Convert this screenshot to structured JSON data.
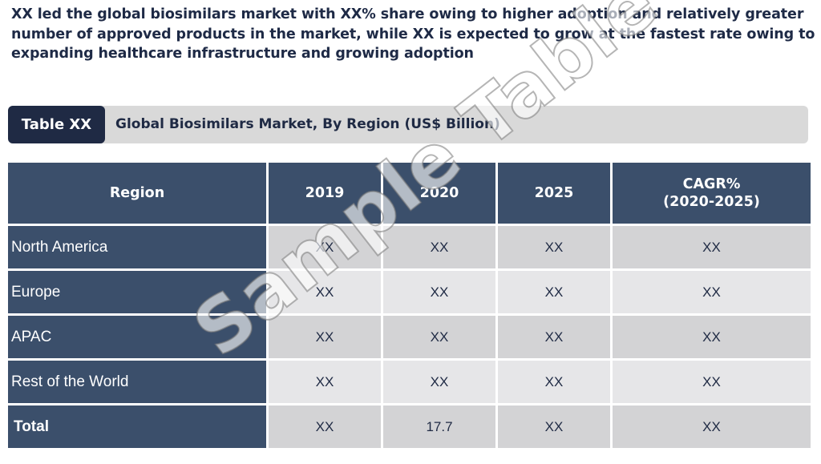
{
  "headline": "XX led the global biosimilars market with XX% share owing to higher adoption and relatively greater number of approved products in the market, while XX is expected to grow at the fastest rate owing to expanding healthcare infrastructure and growing adoption",
  "caption": {
    "tag": "Table XX",
    "title": "Global Biosimilars Market, By Region (US$ Billion)"
  },
  "table": {
    "headers": [
      "Region",
      "2019",
      "2020",
      "2025",
      "CAGR%\n(2020-2025)"
    ],
    "header_cagr_line1": "CAGR%",
    "header_cagr_line2": "(2020-2025)",
    "rows": [
      {
        "region": "North America",
        "y2019": "XX",
        "y2020": "XX",
        "y2025": "XX",
        "cagr": "XX"
      },
      {
        "region": "Europe",
        "y2019": "XX",
        "y2020": "XX",
        "y2025": "XX",
        "cagr": "XX"
      },
      {
        "region": "APAC",
        "y2019": "XX",
        "y2020": "XX",
        "y2025": "XX",
        "cagr": "XX"
      },
      {
        "region": "Rest of the World",
        "y2019": "XX",
        "y2020": "XX",
        "y2025": "XX",
        "cagr": "XX"
      },
      {
        "region": "Total",
        "y2019": "XX",
        "y2020": "17.7",
        "y2025": "XX",
        "cagr": "XX"
      }
    ]
  },
  "watermark": "Sample Table",
  "colors": {
    "header_bg": "#3b4f6b",
    "tag_bg": "#1f2a44",
    "caption_bg": "#d9d9d9",
    "row_odd": "#d3d3d5",
    "row_even": "#e6e6e8"
  }
}
